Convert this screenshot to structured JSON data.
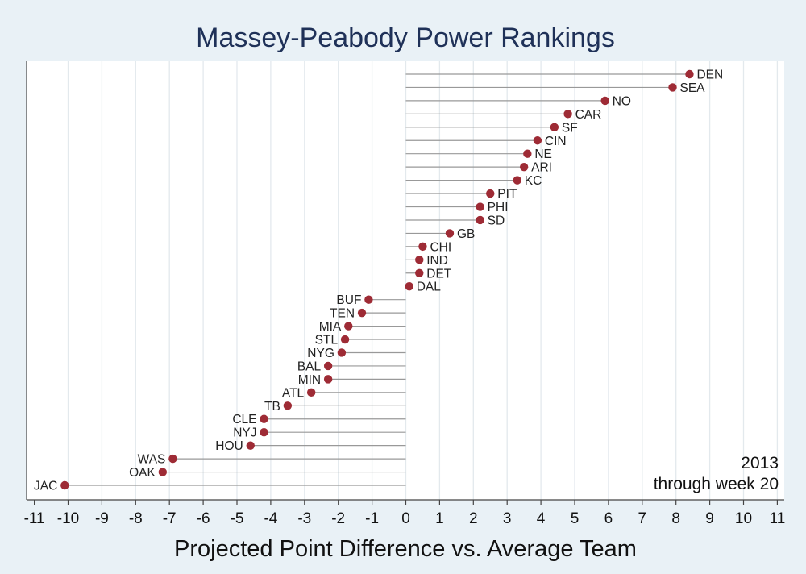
{
  "chart_data": {
    "type": "scatter",
    "title": "Massey-Peabody Power Rankings",
    "xlabel": "Projected Point Difference vs. Average Team",
    "ylabel": "",
    "xlim": [
      -11,
      11
    ],
    "xticks": [
      -11,
      -10,
      -9,
      -8,
      -7,
      -6,
      -5,
      -4,
      -3,
      -2,
      -1,
      0,
      1,
      2,
      3,
      4,
      5,
      6,
      7,
      8,
      9,
      10,
      11
    ],
    "grid": "vertical",
    "marker_color": "#9e2b35",
    "stem_color": "#999999",
    "annotation": [
      "2013",
      "through week 20"
    ],
    "teams": [
      {
        "name": "DEN",
        "value": 8.4
      },
      {
        "name": "SEA",
        "value": 7.9
      },
      {
        "name": "NO",
        "value": 5.9
      },
      {
        "name": "CAR",
        "value": 4.8
      },
      {
        "name": "SF",
        "value": 4.4
      },
      {
        "name": "CIN",
        "value": 3.9
      },
      {
        "name": "NE",
        "value": 3.6
      },
      {
        "name": "ARI",
        "value": 3.5
      },
      {
        "name": "KC",
        "value": 3.3
      },
      {
        "name": "PIT",
        "value": 2.5
      },
      {
        "name": "PHI",
        "value": 2.2
      },
      {
        "name": "SD",
        "value": 2.2
      },
      {
        "name": "GB",
        "value": 1.3
      },
      {
        "name": "CHI",
        "value": 0.5
      },
      {
        "name": "IND",
        "value": 0.4
      },
      {
        "name": "DET",
        "value": 0.4
      },
      {
        "name": "DAL",
        "value": 0.1
      },
      {
        "name": "BUF",
        "value": -1.1
      },
      {
        "name": "TEN",
        "value": -1.3
      },
      {
        "name": "MIA",
        "value": -1.7
      },
      {
        "name": "STL",
        "value": -1.8
      },
      {
        "name": "NYG",
        "value": -1.9
      },
      {
        "name": "BAL",
        "value": -2.3
      },
      {
        "name": "MIN",
        "value": -2.3
      },
      {
        "name": "ATL",
        "value": -2.8
      },
      {
        "name": "TB",
        "value": -3.5
      },
      {
        "name": "CLE",
        "value": -4.2
      },
      {
        "name": "NYJ",
        "value": -4.2
      },
      {
        "name": "HOU",
        "value": -4.6
      },
      {
        "name": "WAS",
        "value": -6.9
      },
      {
        "name": "OAK",
        "value": -7.2
      },
      {
        "name": "JAC",
        "value": -10.1
      }
    ]
  }
}
